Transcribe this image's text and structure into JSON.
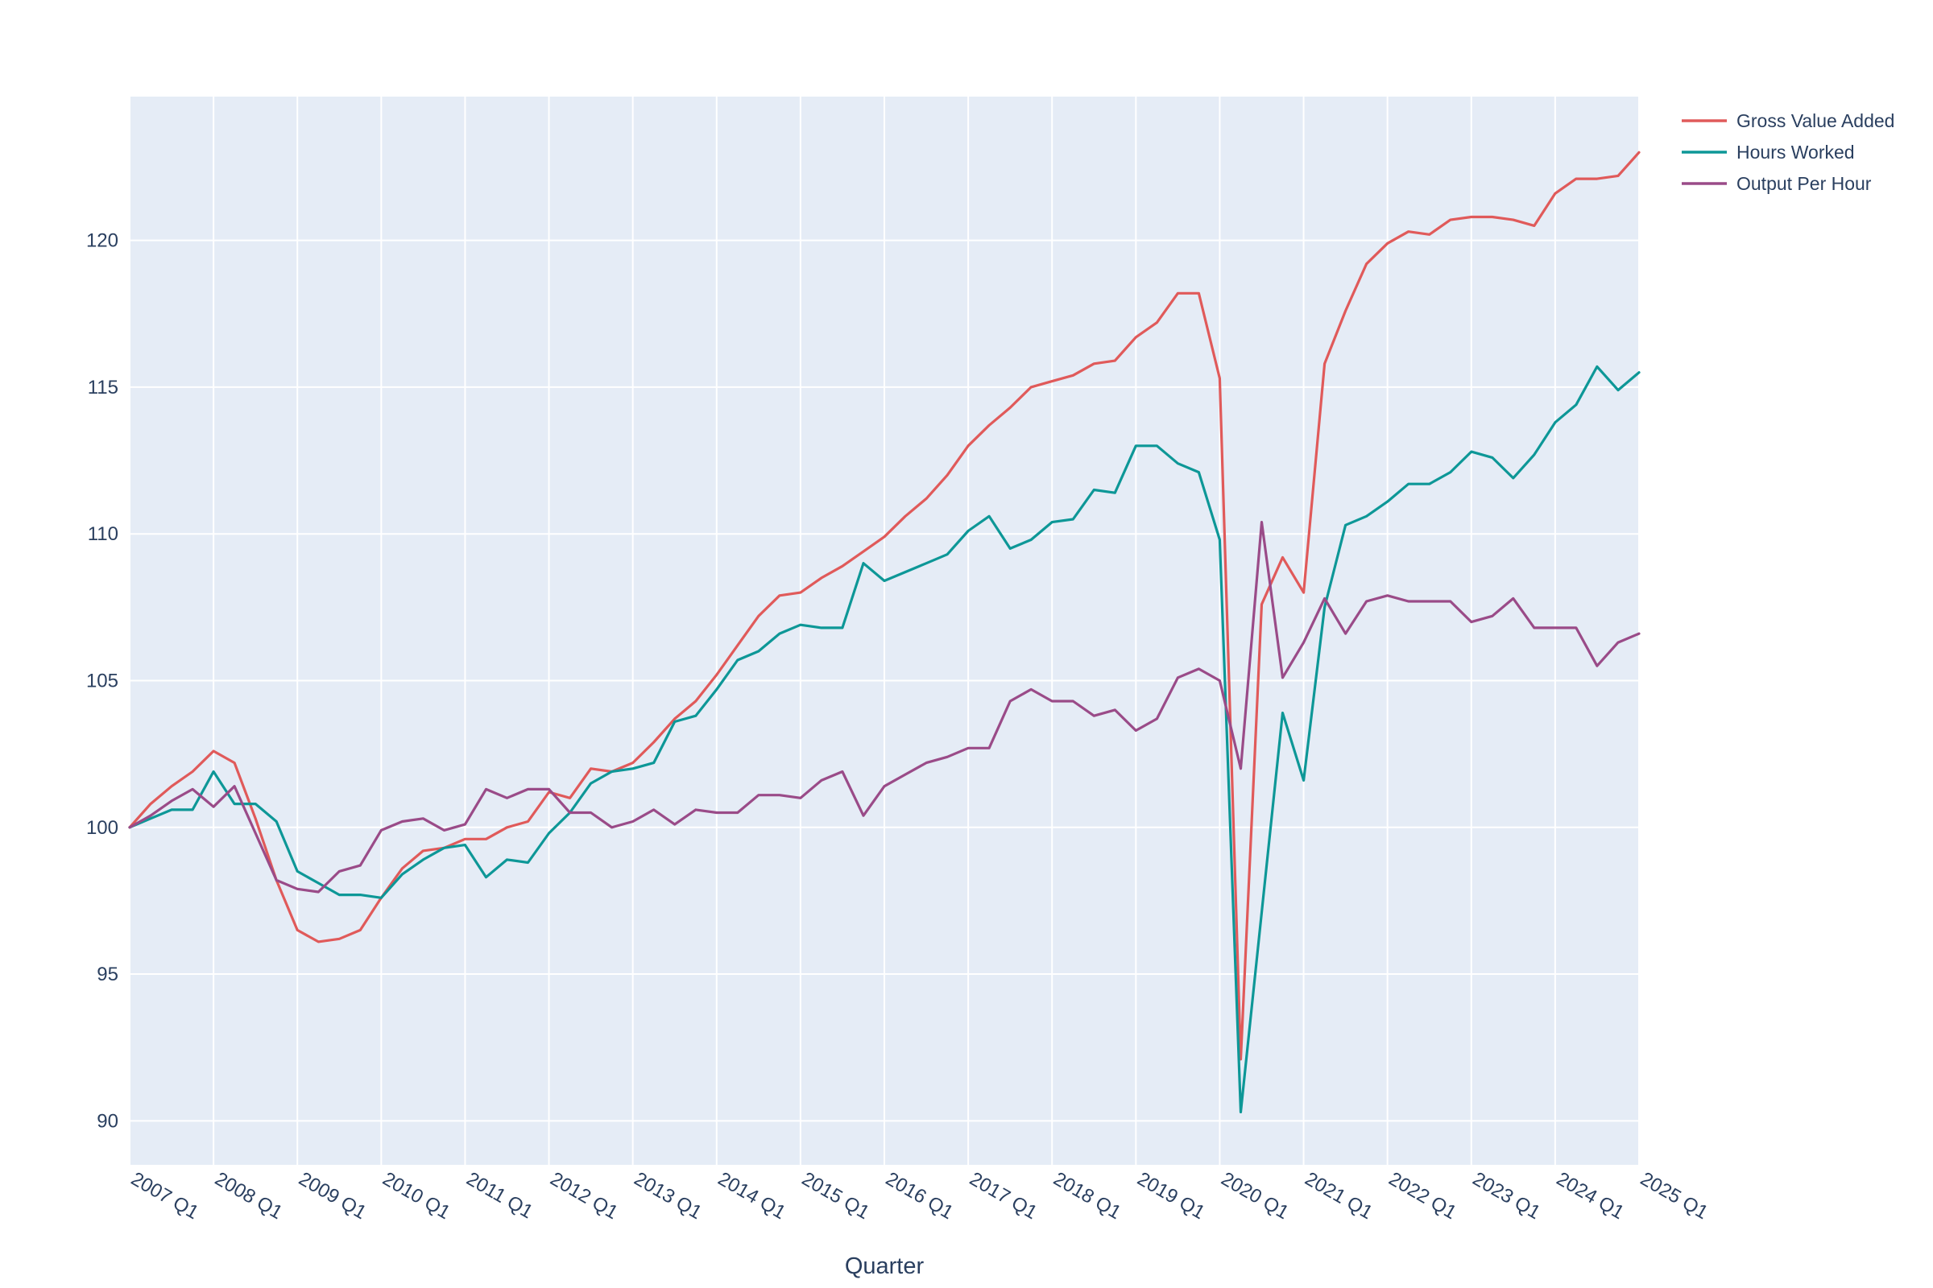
{
  "chart_data": {
    "type": "line",
    "xlabel": "Quarter",
    "ylabel": "",
    "ylim": [
      88.5,
      124.9
    ],
    "yticks": [
      90,
      95,
      100,
      105,
      110,
      115,
      120
    ],
    "x_tick_labels": [
      "2007 Q1",
      "2008 Q1",
      "2009 Q1",
      "2010 Q1",
      "2011 Q1",
      "2012 Q1",
      "2013 Q1",
      "2014 Q1",
      "2015 Q1",
      "2016 Q1",
      "2017 Q1",
      "2018 Q1",
      "2019 Q1",
      "2020 Q1",
      "2021 Q1",
      "2022 Q1",
      "2023 Q1",
      "2024 Q1",
      "2025 Q1"
    ],
    "x_range_quarters": [
      0,
      72
    ],
    "grid": true,
    "plot_background": "#e5ecf6",
    "legend_position": "top-right",
    "series": [
      {
        "name": "Gross Value Added",
        "color": "#e05a5a",
        "values": [
          100.0,
          100.8,
          101.4,
          101.9,
          102.6,
          102.2,
          100.3,
          98.2,
          96.5,
          96.1,
          96.2,
          96.5,
          97.6,
          98.6,
          99.2,
          99.3,
          99.6,
          99.6,
          100.0,
          100.2,
          101.2,
          101.0,
          102.0,
          101.9,
          102.2,
          102.9,
          103.7,
          104.3,
          105.2,
          106.2,
          107.2,
          107.9,
          108.0,
          108.5,
          108.9,
          109.4,
          109.9,
          110.6,
          111.2,
          112.0,
          113.0,
          113.7,
          114.3,
          115.0,
          115.2,
          115.4,
          115.8,
          115.9,
          116.7,
          117.2,
          118.2,
          118.2,
          115.3,
          92.1,
          107.6,
          109.2,
          108.0,
          115.8,
          117.6,
          119.2,
          119.9,
          120.3,
          120.2,
          120.7,
          120.8,
          120.8,
          120.7,
          120.5,
          121.6,
          122.1,
          122.1,
          122.2,
          123.0
        ]
      },
      {
        "name": "Hours Worked",
        "color": "#0d9797",
        "values": [
          100.0,
          100.3,
          100.6,
          100.6,
          101.9,
          100.8,
          100.8,
          100.2,
          98.5,
          98.1,
          97.7,
          97.7,
          97.6,
          98.4,
          98.9,
          99.3,
          99.4,
          98.3,
          98.9,
          98.8,
          99.8,
          100.5,
          101.5,
          101.9,
          102.0,
          102.2,
          103.6,
          103.8,
          104.7,
          105.7,
          106.0,
          106.6,
          106.9,
          106.8,
          106.8,
          109.0,
          108.4,
          108.7,
          109.0,
          109.3,
          110.1,
          110.6,
          109.5,
          109.8,
          110.4,
          110.5,
          111.5,
          111.4,
          113.0,
          113.0,
          112.4,
          112.1,
          109.8,
          90.3,
          97.1,
          103.9,
          101.6,
          107.5,
          110.3,
          110.6,
          111.1,
          111.7,
          111.7,
          112.1,
          112.8,
          112.6,
          111.9,
          112.7,
          113.8,
          114.4,
          115.7,
          114.9,
          115.5
        ]
      },
      {
        "name": "Output Per Hour",
        "color": "#9a4b88",
        "values": [
          100.0,
          100.4,
          100.9,
          101.3,
          100.7,
          101.4,
          99.8,
          98.2,
          97.9,
          97.8,
          98.5,
          98.7,
          99.9,
          100.2,
          100.3,
          99.9,
          100.1,
          101.3,
          101.0,
          101.3,
          101.3,
          100.5,
          100.5,
          100.0,
          100.2,
          100.6,
          100.1,
          100.6,
          100.5,
          100.5,
          101.1,
          101.1,
          101.0,
          101.6,
          101.9,
          100.4,
          101.4,
          101.8,
          102.2,
          102.4,
          102.7,
          102.7,
          104.3,
          104.7,
          104.3,
          104.3,
          103.8,
          104.0,
          103.3,
          103.7,
          105.1,
          105.4,
          105.0,
          102.0,
          110.4,
          105.1,
          106.3,
          107.8,
          106.6,
          107.7,
          107.9,
          107.7,
          107.7,
          107.7,
          107.0,
          107.2,
          107.8,
          106.8,
          106.8,
          106.8,
          105.5,
          106.3,
          106.6
        ]
      }
    ]
  }
}
